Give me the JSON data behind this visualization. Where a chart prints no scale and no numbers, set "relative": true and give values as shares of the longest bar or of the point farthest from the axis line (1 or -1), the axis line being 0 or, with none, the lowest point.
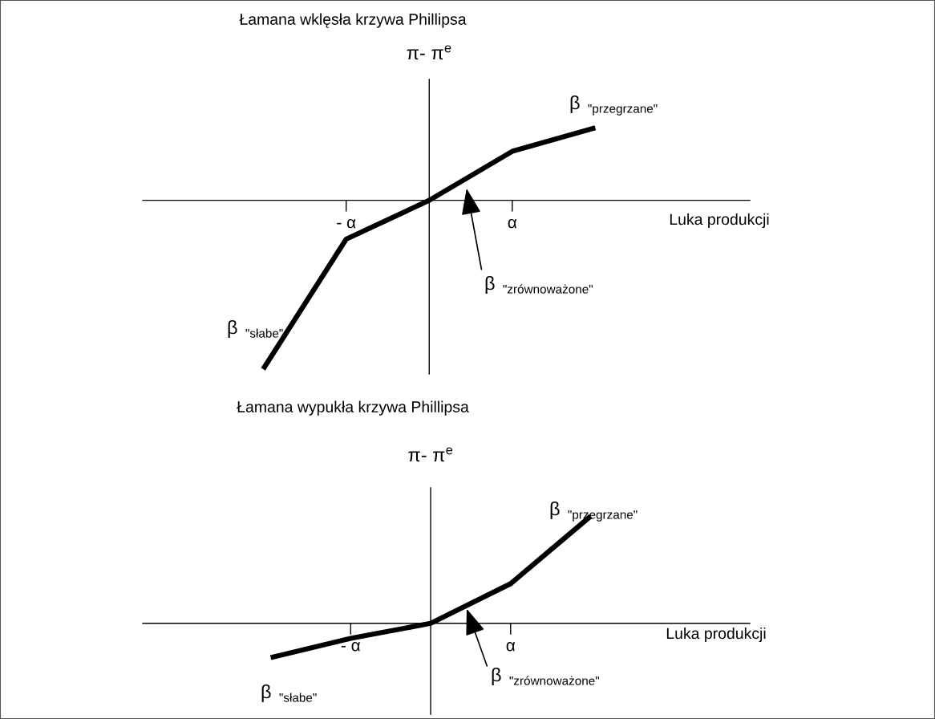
{
  "chart_data": [
    {
      "type": "line",
      "title": "Łamana wklęsła krzywa Phillipsa",
      "xlabel": "Luka produkcji",
      "ylabel": "π- π$^{e}$",
      "relative": true,
      "categories": [
        null,
        "- α",
        null,
        "α",
        null
      ],
      "tick_labels": "x",
      "series": [
        {
          "color": "#000000",
          "values": [
            -1,
            -0.23,
            0,
            0.29,
            0.43
          ]
        }
      ],
      "annotations": [
        "β $_{\"słabe\"}$",
        "β $_{\"przegrzane\"}$",
        "β $_{\"zrównoważone\"}$"
      ],
      "marker": "none",
      "line_style": "solid"
    },
    {
      "type": "line",
      "title": "Łamana wypukła krzywa Phillipsa",
      "xlabel": "Luka produkcji",
      "ylabel": "π- π$^{e}$",
      "relative": true,
      "categories": [
        null,
        "- α",
        null,
        "α",
        null
      ],
      "tick_labels": "x",
      "series": [
        {
          "color": "#000000",
          "values": [
            -0.32,
            -0.14,
            0,
            0.37,
            1
          ]
        }
      ],
      "annotations": [
        "β $_{\"słabe\"}$",
        "β $_{\"przegrzane\"}$",
        "β $_{\"zrównoważone\"}$"
      ],
      "marker": "none",
      "line_style": "solid"
    }
  ]
}
